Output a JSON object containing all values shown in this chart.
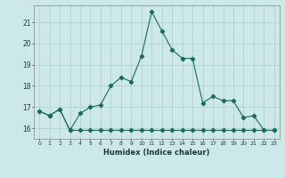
{
  "x": [
    0,
    1,
    2,
    3,
    4,
    5,
    6,
    7,
    8,
    9,
    10,
    11,
    12,
    13,
    14,
    15,
    16,
    17,
    18,
    19,
    20,
    21,
    22,
    23
  ],
  "y_main": [
    16.8,
    16.6,
    16.9,
    15.9,
    16.7,
    17.0,
    17.1,
    18.0,
    18.4,
    18.2,
    19.4,
    21.5,
    20.6,
    19.7,
    19.3,
    19.3,
    17.2,
    17.5,
    17.3,
    17.3,
    16.5,
    16.6,
    15.9,
    15.9
  ],
  "y_flat": [
    16.8,
    16.6,
    16.9,
    15.9,
    15.9,
    15.9,
    15.9,
    15.9,
    15.9,
    15.9,
    15.9,
    15.9,
    15.9,
    15.9,
    15.9,
    15.9,
    15.9,
    15.9,
    15.9,
    15.9,
    15.9,
    15.9,
    15.9,
    15.9
  ],
  "ylim": [
    15.5,
    21.8
  ],
  "yticks": [
    16,
    17,
    18,
    19,
    20,
    21
  ],
  "xlabel": "Humidex (Indice chaleur)",
  "line_color": "#1a6b5a",
  "bg_color": "#cce8e8",
  "grid_color": "#aacece",
  "marker_style": "D",
  "marker_size": 2.2
}
